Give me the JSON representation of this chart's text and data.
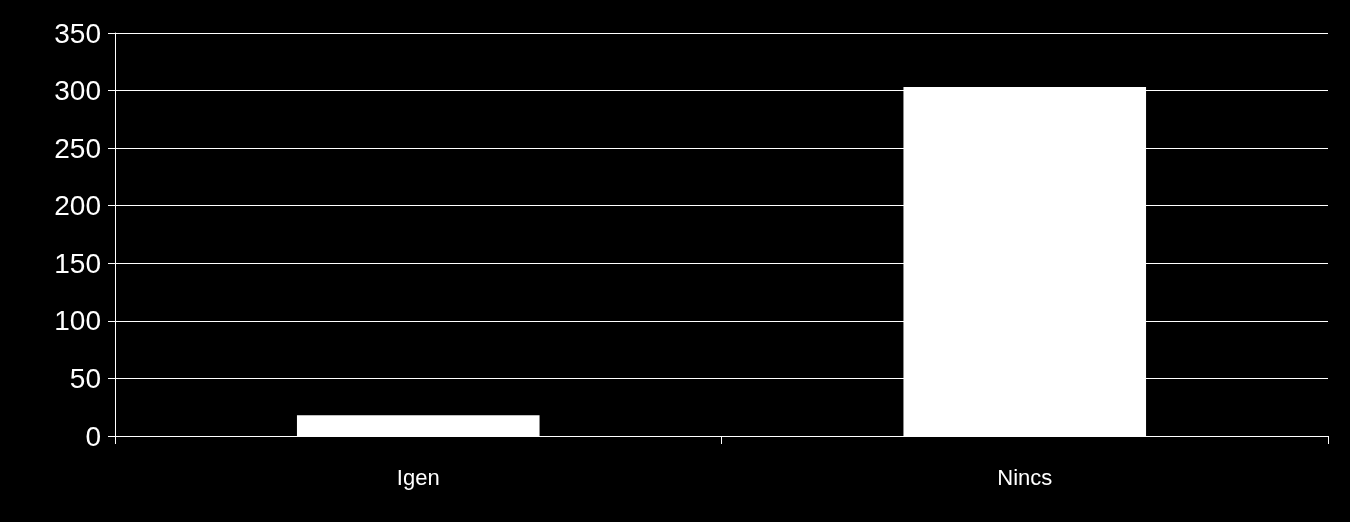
{
  "chart_data": {
    "type": "bar",
    "categories": [
      "Igen",
      "Nincs"
    ],
    "values": [
      18,
      303
    ],
    "color": "#ffffff",
    "ylim": [
      0,
      350
    ],
    "yticks": [
      0,
      50,
      100,
      150,
      200,
      250,
      300,
      350
    ],
    "grid": "y"
  }
}
